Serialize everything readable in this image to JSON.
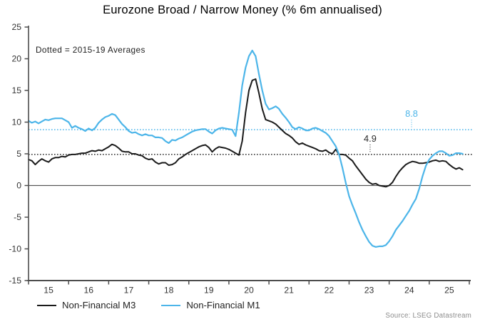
{
  "title": "Eurozone Broad / Narrow Money (% 6m annualised)",
  "annotation_note": "Dotted = 2015-19 Averages",
  "source": "Source: LSEG Datastream",
  "colors": {
    "m3": "#1a1a1a",
    "m1": "#4cb5e9",
    "axis": "#4d4d4d",
    "zero_line": "#595959",
    "tick_text": "#333333"
  },
  "legend": {
    "items": [
      {
        "label": "Non-Financial M3",
        "color": "#1a1a1a"
      },
      {
        "label": "Non-Financial M1",
        "color": "#4cb5e9"
      }
    ]
  },
  "chart_data": {
    "type": "line",
    "title": "Eurozone Broad / Narrow Money (% 6m annualised)",
    "xlabel": "",
    "ylabel": "",
    "x_unit": "monthly, Jan 2015 onward",
    "x_tick_labels": [
      "15",
      "16",
      "17",
      "18",
      "19",
      "20",
      "21",
      "22",
      "23",
      "24",
      "25"
    ],
    "y_ticks": [
      25,
      20,
      15,
      10,
      5,
      0,
      -5,
      -10,
      -15
    ],
    "ylim": [
      -15,
      25
    ],
    "grid": false,
    "zero_line": true,
    "legend_position": "bottom-left",
    "averages": [
      {
        "series": "Non-Financial M1",
        "value": 8.8,
        "label": "8.8",
        "color": "#4cb5e9",
        "anchor_month": 114.7
      },
      {
        "series": "Non-Financial M3",
        "value": 4.9,
        "label": "4.9",
        "color": "#2a2a2a",
        "anchor_month": 102.3
      }
    ],
    "series": [
      {
        "name": "Non-Financial M3",
        "color": "#1a1a1a",
        "width": 2.0,
        "values": [
          4.1,
          3.9,
          3.3,
          3.8,
          4.2,
          3.9,
          3.7,
          4.2,
          4.4,
          4.4,
          4.6,
          4.5,
          4.8,
          4.9,
          4.9,
          5.0,
          5.1,
          5.1,
          5.3,
          5.5,
          5.4,
          5.6,
          5.5,
          5.8,
          6.1,
          6.5,
          6.3,
          5.9,
          5.4,
          5.3,
          5.3,
          5.0,
          5.0,
          4.8,
          4.7,
          4.3,
          4.1,
          4.2,
          3.7,
          3.4,
          3.6,
          3.6,
          3.2,
          3.3,
          3.6,
          4.2,
          4.5,
          4.9,
          5.2,
          5.5,
          5.8,
          6.1,
          6.3,
          6.4,
          6.0,
          5.3,
          5.8,
          6.1,
          6.0,
          5.9,
          5.7,
          5.4,
          5.1,
          4.8,
          7.0,
          11.5,
          15.0,
          16.6,
          16.8,
          14.6,
          12.1,
          10.4,
          10.2,
          10.0,
          9.7,
          9.2,
          8.7,
          8.2,
          7.9,
          7.5,
          6.9,
          6.5,
          6.7,
          6.4,
          6.2,
          6.0,
          5.8,
          5.5,
          5.4,
          5.6,
          5.2,
          5.0,
          5.7,
          4.9,
          4.9,
          4.8,
          4.3,
          3.9,
          3.1,
          2.4,
          1.7,
          1.0,
          0.5,
          0.2,
          0.3,
          0.0,
          -0.1,
          -0.2,
          0.0,
          0.5,
          1.4,
          2.2,
          2.8,
          3.3,
          3.6,
          3.8,
          3.7,
          3.5,
          3.5,
          3.6,
          3.7,
          3.9,
          4.0,
          3.8,
          3.9,
          3.8,
          3.3,
          2.9,
          2.6,
          2.8,
          2.5
        ]
      },
      {
        "name": "Non-Financial M1",
        "color": "#4cb5e9",
        "width": 2.2,
        "values": [
          10.2,
          9.9,
          10.1,
          9.8,
          10.1,
          10.4,
          10.3,
          10.5,
          10.6,
          10.6,
          10.6,
          10.3,
          10.0,
          9.1,
          9.4,
          9.1,
          8.9,
          8.6,
          9.0,
          8.7,
          9.1,
          9.9,
          10.4,
          10.8,
          11.0,
          11.3,
          11.1,
          10.4,
          9.7,
          9.2,
          8.6,
          8.3,
          8.4,
          8.1,
          7.9,
          8.1,
          7.9,
          7.9,
          7.6,
          7.6,
          7.5,
          7.0,
          6.7,
          7.2,
          7.1,
          7.4,
          7.6,
          7.9,
          8.2,
          8.5,
          8.7,
          8.8,
          8.9,
          8.9,
          8.5,
          8.2,
          8.7,
          9.0,
          9.1,
          9.0,
          8.9,
          8.8,
          7.8,
          11.5,
          15.8,
          18.6,
          20.4,
          21.3,
          20.4,
          17.6,
          15.0,
          12.9,
          12.0,
          12.2,
          12.5,
          12.1,
          11.3,
          10.7,
          10.0,
          9.2,
          8.9,
          9.2,
          9.0,
          8.7,
          8.7,
          9.0,
          9.1,
          8.9,
          8.6,
          8.3,
          7.8,
          7.0,
          6.2,
          4.9,
          2.8,
          0.4,
          -1.7,
          -3.1,
          -4.4,
          -5.8,
          -7.0,
          -8.0,
          -8.9,
          -9.5,
          -9.7,
          -9.6,
          -9.6,
          -9.4,
          -8.8,
          -8.0,
          -7.0,
          -6.3,
          -5.6,
          -4.8,
          -4.0,
          -3.0,
          -2.1,
          -0.5,
          1.5,
          3.1,
          4.1,
          4.7,
          5.1,
          5.4,
          5.4,
          5.1,
          4.7,
          4.8,
          5.1,
          5.1,
          5.0
        ]
      }
    ]
  }
}
